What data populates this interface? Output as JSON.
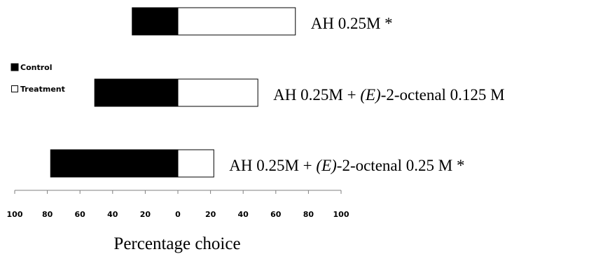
{
  "chart_data": {
    "type": "bar",
    "orientation": "horizontal-diverging",
    "xlabel": "Percentage choice",
    "xlim": [
      -100,
      100
    ],
    "tick_values": [
      -100,
      -80,
      -60,
      -40,
      -20,
      0,
      20,
      40,
      60,
      80,
      100
    ],
    "tick_labels": [
      "100",
      "80",
      "60",
      "40",
      "20",
      "0",
      "20",
      "40",
      "60",
      "80",
      "100"
    ],
    "legend": {
      "placement": "left",
      "entries": [
        {
          "label": "Control",
          "color": "#000000"
        },
        {
          "label": "Treatment",
          "color": "#ffffff"
        }
      ]
    },
    "rows": [
      {
        "label_parts": [
          "AH 0.25M *"
        ],
        "control": 28,
        "treatment": 72
      },
      {
        "label_parts": [
          "AH 0.25M + ",
          "(E)",
          "-2-octenal 0.125 M"
        ],
        "control": 51,
        "treatment": 49
      },
      {
        "label_parts": [
          "AH 0.25M + ",
          "(E)",
          "-2-octenal 0.25 M *"
        ],
        "control": 78,
        "treatment": 22
      }
    ]
  }
}
